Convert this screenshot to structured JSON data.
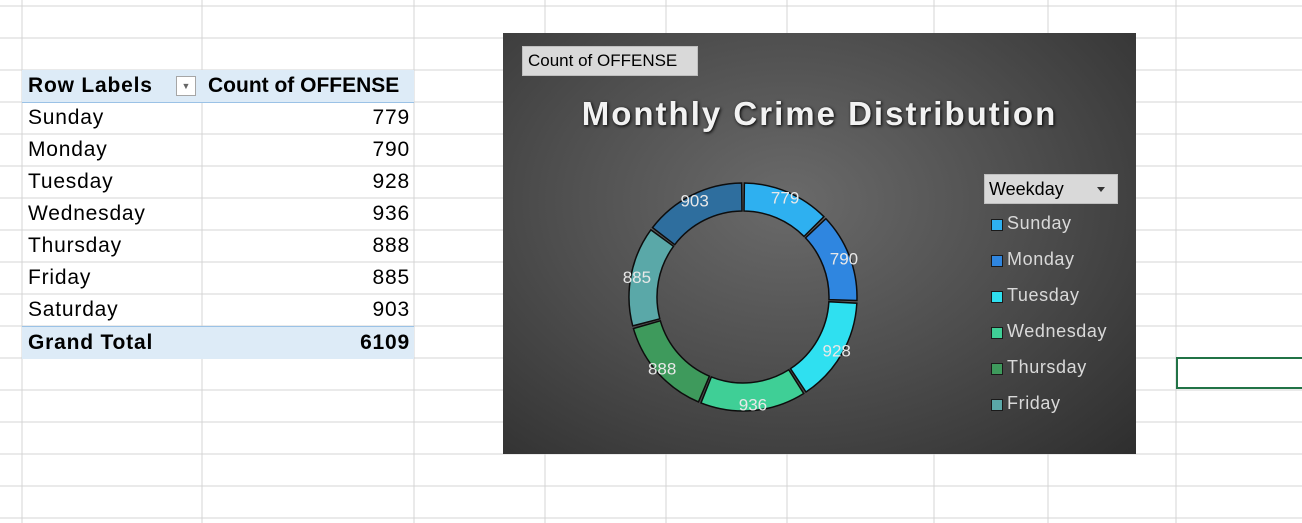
{
  "pivot": {
    "header_label": "Row Labels",
    "header_value": "Count of OFFENSE",
    "rows": [
      {
        "label": "Sunday",
        "value": "779"
      },
      {
        "label": "Monday",
        "value": "790"
      },
      {
        "label": "Tuesday",
        "value": "928"
      },
      {
        "label": "Wednesday",
        "value": "936"
      },
      {
        "label": "Thursday",
        "value": "888"
      },
      {
        "label": "Friday",
        "value": "885"
      },
      {
        "label": "Saturday",
        "value": "903"
      }
    ],
    "total_label": "Grand Total",
    "total_value": "6109"
  },
  "chart": {
    "field_button": "Count of OFFENSE",
    "title": "Monthly Crime Distribution",
    "legend_dropdown": "Weekday",
    "legend": [
      {
        "name": "Sunday",
        "color": "#2eb0f0"
      },
      {
        "name": "Monday",
        "color": "#2f86e0"
      },
      {
        "name": "Tuesday",
        "color": "#2fe0f0"
      },
      {
        "name": "Wednesday",
        "color": "#3fcf96"
      },
      {
        "name": "Thursday",
        "color": "#3e9a5c"
      },
      {
        "name": "Friday",
        "color": "#5aa8a8"
      }
    ]
  },
  "chart_data": {
    "type": "pie",
    "style": "doughnut",
    "title": "Monthly Crime Distribution",
    "categories": [
      "Sunday",
      "Monday",
      "Tuesday",
      "Wednesday",
      "Thursday",
      "Friday",
      "Saturday"
    ],
    "values": [
      779,
      790,
      928,
      936,
      888,
      885,
      903
    ],
    "colors": [
      "#2eb0f0",
      "#2f86e0",
      "#2fe0f0",
      "#3fcf96",
      "#3e9a5c",
      "#5aa8a8",
      "#2e6e9e"
    ],
    "data_labels": [
      "779",
      "790",
      "928",
      "936",
      "888",
      "885",
      "903"
    ],
    "legend_position": "right"
  }
}
